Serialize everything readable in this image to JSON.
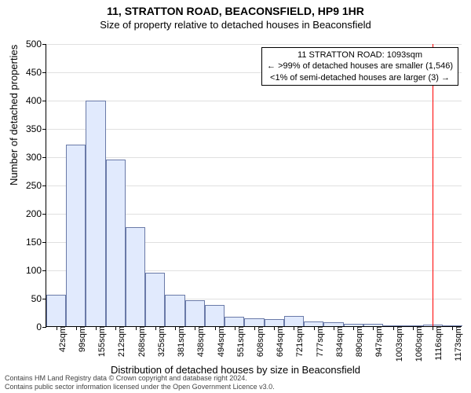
{
  "title": "11, STRATTON ROAD, BEACONSFIELD, HP9 1HR",
  "subtitle": "Size of property relative to detached houses in Beaconsfield",
  "ylabel": "Number of detached properties",
  "xlabel": "Distribution of detached houses by size in Beaconsfield",
  "chart": {
    "type": "histogram",
    "ylim": [
      0,
      500
    ],
    "ytick_step": 50,
    "bar_fill": "#e1eafd",
    "bar_stroke": "#6a7aa8",
    "grid_color": "#e0e0e0",
    "background_color": "#ffffff",
    "axis_color": "#000000",
    "bar_width_ratio": 1.0,
    "xticks": [
      "42sqm",
      "99sqm",
      "155sqm",
      "212sqm",
      "268sqm",
      "325sqm",
      "381sqm",
      "438sqm",
      "494sqm",
      "551sqm",
      "608sqm",
      "664sqm",
      "721sqm",
      "777sqm",
      "834sqm",
      "890sqm",
      "947sqm",
      "1003sqm",
      "1060sqm",
      "1116sqm",
      "1173sqm"
    ],
    "values": [
      55,
      321,
      398,
      295,
      175,
      95,
      55,
      46,
      38,
      16,
      14,
      12,
      18,
      8,
      7,
      4,
      4,
      2,
      2,
      3,
      1
    ],
    "reference_line": {
      "position_index": 19,
      "color": "#ff0000",
      "label": "1093sqm"
    }
  },
  "annotation": {
    "line1": "11 STRATTON ROAD: 1093sqm",
    "line2": "← >99% of detached houses are smaller (1,546)",
    "line3": "<1% of semi-detached houses are larger (3) →"
  },
  "footer": {
    "line1": "Contains HM Land Registry data © Crown copyright and database right 2024.",
    "line2": "Contains public sector information licensed under the Open Government Licence v3.0."
  },
  "fonts": {
    "title": 14,
    "subtitle": 13,
    "axis_label": 13,
    "tick": 12,
    "xtick": 11,
    "annotation": 11,
    "footer": 9
  }
}
